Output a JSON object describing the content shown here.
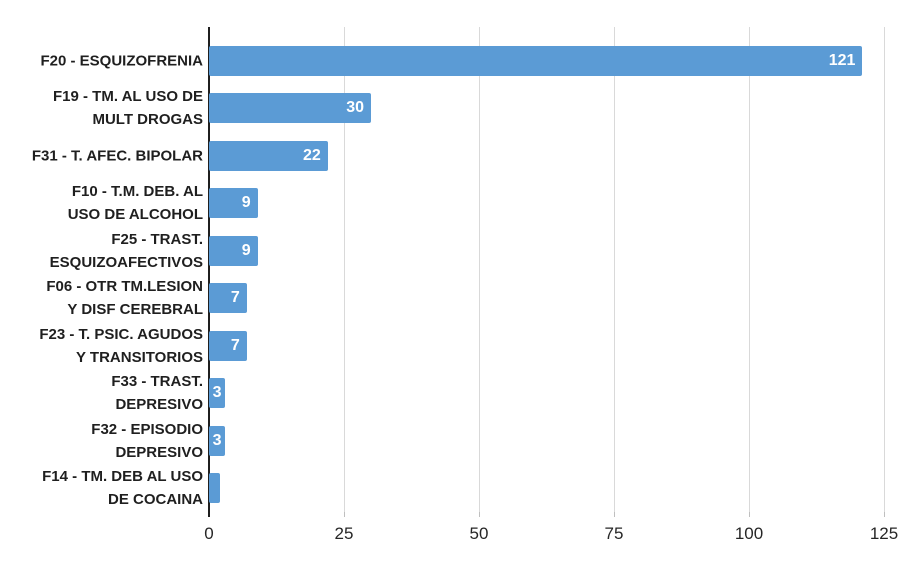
{
  "chart_data": {
    "type": "bar",
    "orientation": "horizontal",
    "title": "",
    "xlabel": "",
    "ylabel": "",
    "xlim": [
      0,
      125
    ],
    "xticks": [
      0,
      25,
      50,
      75,
      100,
      125
    ],
    "grid": true,
    "legend": false,
    "bar_color": "#5B9BD5",
    "axis_line_color": "#1f1f1f",
    "gridline_color": "#D9D9D9",
    "categories": [
      "F20 - ESQUIZOFRENIA",
      "F19 - TM. AL USO DE MULT DROGAS",
      "F31 - T. AFEC. BIPOLAR",
      "F10 - T.M. DEB. AL USO DE ALCOHOL",
      "F25 - TRAST. ESQUIZOAFECTIVOS",
      "F06 - OTR TM.LESION Y DISF CEREBRAL",
      "F23 - T. PSIC. AGUDOS Y TRANSITORIOS",
      "F33 - TRAST. DEPRESIVO",
      "F32 - EPISODIO DEPRESIVO",
      "F14 - TM. DEB AL USO DE COCAINA"
    ],
    "values": [
      121,
      30,
      22,
      9,
      9,
      7,
      7,
      3,
      3,
      2
    ],
    "rows": [
      {
        "lines": [
          "F20 - ESQUIZOFRENIA"
        ],
        "value": 121,
        "label": "121"
      },
      {
        "lines": [
          "F19 - TM. AL USO DE",
          "MULT DROGAS"
        ],
        "value": 30,
        "label": "30"
      },
      {
        "lines": [
          "F31 - T. AFEC. BIPOLAR"
        ],
        "value": 22,
        "label": "22"
      },
      {
        "lines": [
          "F10 - T.M. DEB. AL",
          "USO DE ALCOHOL"
        ],
        "value": 9,
        "label": "9"
      },
      {
        "lines": [
          "F25 - TRAST.",
          "ESQUIZOAFECTIVOS"
        ],
        "value": 9,
        "label": "9"
      },
      {
        "lines": [
          "F06 - OTR TM.LESION",
          "Y DISF CEREBRAL"
        ],
        "value": 7,
        "label": "7"
      },
      {
        "lines": [
          "F23 - T. PSIC. AGUDOS",
          "Y TRANSITORIOS"
        ],
        "value": 7,
        "label": "7"
      },
      {
        "lines": [
          "F33 - TRAST.",
          "DEPRESIVO"
        ],
        "value": 3,
        "label": "3"
      },
      {
        "lines": [
          "F32 - EPISODIO",
          "DEPRESIVO"
        ],
        "value": 3,
        "label": "3"
      },
      {
        "lines": [
          "F14 - TM. DEB AL USO",
          "DE COCAINA"
        ],
        "value": 2,
        "label": ""
      }
    ]
  }
}
